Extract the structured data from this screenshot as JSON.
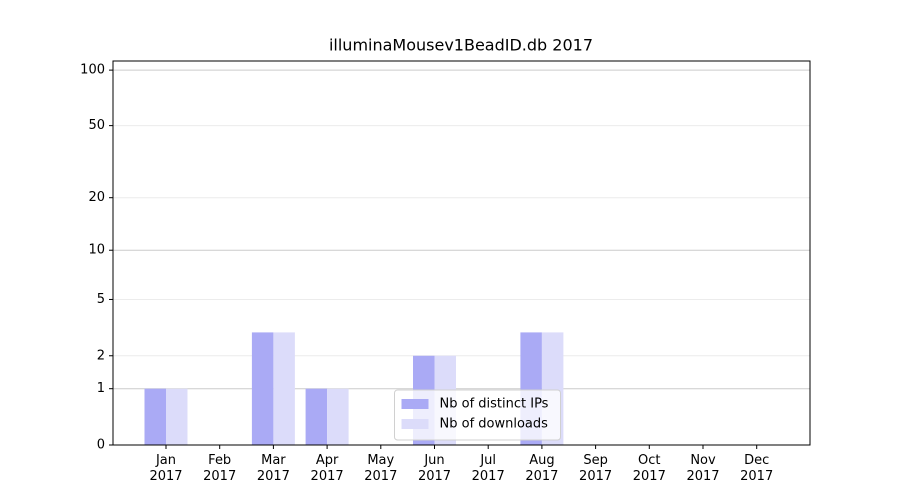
{
  "chart_data": {
    "type": "bar",
    "title": "illuminaMousev1BeadID.db 2017",
    "categories": [
      "Jan\n2017",
      "Feb\n2017",
      "Mar\n2017",
      "Apr\n2017",
      "May\n2017",
      "Jun\n2017",
      "Jul\n2017",
      "Aug\n2017",
      "Sep\n2017",
      "Oct\n2017",
      "Nov\n2017",
      "Dec\n2017"
    ],
    "series": [
      {
        "name": "Nb of distinct IPs",
        "color": "#aaaaf5",
        "values": [
          1,
          0,
          3,
          1,
          0,
          2,
          0,
          3,
          0,
          0,
          0,
          0
        ]
      },
      {
        "name": "Nb of downloads",
        "color": "#dcdcfa",
        "values": [
          1,
          0,
          3,
          1,
          0,
          2,
          0,
          3,
          0,
          0,
          0,
          0
        ]
      }
    ],
    "yscale": "log1p",
    "ylim": [
      0,
      112
    ],
    "yticks": [
      0,
      1,
      2,
      5,
      10,
      20,
      50,
      100
    ],
    "grid": true,
    "legend": "lower center"
  }
}
